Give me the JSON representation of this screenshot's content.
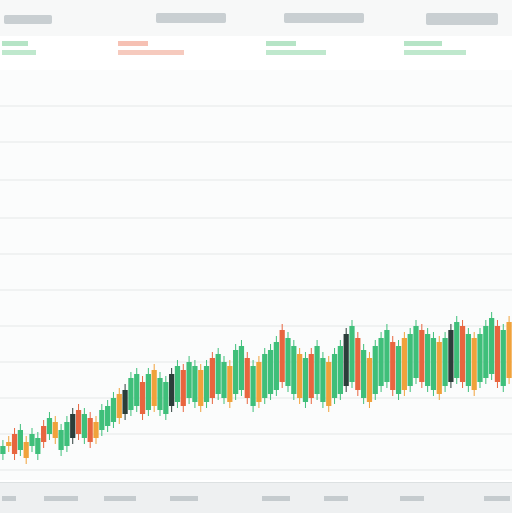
{
  "colors": {
    "up": "#3fbf7a",
    "down": "#e8653f",
    "neutral": "#f0a23b",
    "dark": "#2c3e3a",
    "grid": "#e4e8e9"
  },
  "chart_data": {
    "type": "bar",
    "title": "",
    "xlabel": "",
    "ylabel": "",
    "grid": true,
    "legend": "none",
    "ylim": [
      0,
      100
    ],
    "series": [
      {
        "values": [
          [
            4,
            6,
            "up"
          ],
          [
            6,
            7,
            "neutral"
          ],
          [
            4,
            9,
            "down"
          ],
          [
            5,
            10,
            "up"
          ],
          [
            3,
            7,
            "neutral"
          ],
          [
            6,
            9,
            "up"
          ],
          [
            4,
            8,
            "up"
          ],
          [
            7,
            11,
            "down"
          ],
          [
            9,
            13,
            "up"
          ],
          [
            8,
            12,
            "neutral"
          ],
          [
            5,
            10,
            "up"
          ],
          [
            6,
            12,
            "up"
          ],
          [
            8,
            14,
            "dark"
          ],
          [
            9,
            15,
            "down"
          ],
          [
            8,
            14,
            "up"
          ],
          [
            7,
            13,
            "down"
          ],
          [
            8,
            12,
            "neutral"
          ],
          [
            10,
            15,
            "up"
          ],
          [
            11,
            16,
            "up"
          ],
          [
            12,
            18,
            "up"
          ],
          [
            13,
            19,
            "neutral"
          ],
          [
            14,
            20,
            "dark"
          ],
          [
            15,
            23,
            "up"
          ],
          [
            16,
            24,
            "up"
          ],
          [
            14,
            22,
            "down"
          ],
          [
            15,
            24,
            "up"
          ],
          [
            16,
            25,
            "neutral"
          ],
          [
            15,
            23,
            "up"
          ],
          [
            14,
            22,
            "up"
          ],
          [
            16,
            24,
            "dark"
          ],
          [
            17,
            26,
            "up"
          ],
          [
            16,
            25,
            "down"
          ],
          [
            18,
            27,
            "up"
          ],
          [
            17,
            26,
            "up"
          ],
          [
            16,
            25,
            "neutral"
          ],
          [
            17,
            26,
            "up"
          ],
          [
            18,
            28,
            "down"
          ],
          [
            19,
            29,
            "up"
          ],
          [
            18,
            27,
            "up"
          ],
          [
            17,
            26,
            "neutral"
          ],
          [
            19,
            30,
            "up"
          ],
          [
            20,
            31,
            "up"
          ],
          [
            18,
            28,
            "down"
          ],
          [
            16,
            26,
            "up"
          ],
          [
            17,
            27,
            "neutral"
          ],
          [
            18,
            29,
            "up"
          ],
          [
            19,
            30,
            "up"
          ],
          [
            20,
            32,
            "up"
          ],
          [
            22,
            35,
            "down"
          ],
          [
            21,
            33,
            "up"
          ],
          [
            19,
            31,
            "up"
          ],
          [
            18,
            29,
            "neutral"
          ],
          [
            17,
            28,
            "up"
          ],
          [
            18,
            29,
            "down"
          ],
          [
            19,
            31,
            "up"
          ],
          [
            17,
            28,
            "up"
          ],
          [
            16,
            27,
            "neutral"
          ],
          [
            18,
            29,
            "up"
          ],
          [
            19,
            31,
            "up"
          ],
          [
            21,
            34,
            "dark"
          ],
          [
            22,
            36,
            "up"
          ],
          [
            20,
            33,
            "down"
          ],
          [
            18,
            30,
            "up"
          ],
          [
            17,
            28,
            "neutral"
          ],
          [
            19,
            31,
            "up"
          ],
          [
            21,
            33,
            "up"
          ],
          [
            22,
            35,
            "up"
          ],
          [
            20,
            32,
            "down"
          ],
          [
            19,
            31,
            "up"
          ],
          [
            20,
            33,
            "neutral"
          ],
          [
            21,
            34,
            "up"
          ],
          [
            23,
            36,
            "up"
          ],
          [
            22,
            35,
            "down"
          ],
          [
            21,
            34,
            "up"
          ],
          [
            20,
            33,
            "up"
          ],
          [
            19,
            32,
            "neutral"
          ],
          [
            21,
            33,
            "up"
          ],
          [
            22,
            35,
            "dark"
          ],
          [
            23,
            37,
            "up"
          ],
          [
            22,
            36,
            "down"
          ],
          [
            21,
            34,
            "up"
          ],
          [
            20,
            33,
            "neutral"
          ],
          [
            22,
            34,
            "up"
          ],
          [
            23,
            36,
            "up"
          ],
          [
            24,
            38,
            "up"
          ],
          [
            22,
            36,
            "down"
          ],
          [
            21,
            35,
            "up"
          ],
          [
            23,
            37,
            "neutral"
          ]
        ]
      }
    ]
  }
}
